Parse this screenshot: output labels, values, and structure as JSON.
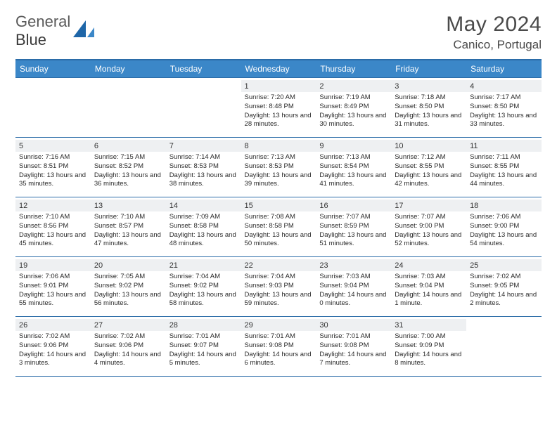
{
  "brand": {
    "part1": "General",
    "part2": "Blue"
  },
  "title": "May 2024",
  "location": "Canico, Portugal",
  "colors": {
    "header_bg": "#3b87c8",
    "header_border": "#2b6ca8",
    "daynum_bg": "#eef0f2",
    "text": "#2a2a2a",
    "title_text": "#4a4a4a"
  },
  "weekdays": [
    "Sunday",
    "Monday",
    "Tuesday",
    "Wednesday",
    "Thursday",
    "Friday",
    "Saturday"
  ],
  "weeks": [
    [
      {
        "n": "",
        "sr": "",
        "ss": "",
        "dl": ""
      },
      {
        "n": "",
        "sr": "",
        "ss": "",
        "dl": ""
      },
      {
        "n": "",
        "sr": "",
        "ss": "",
        "dl": ""
      },
      {
        "n": "1",
        "sr": "Sunrise: 7:20 AM",
        "ss": "Sunset: 8:48 PM",
        "dl": "Daylight: 13 hours and 28 minutes."
      },
      {
        "n": "2",
        "sr": "Sunrise: 7:19 AM",
        "ss": "Sunset: 8:49 PM",
        "dl": "Daylight: 13 hours and 30 minutes."
      },
      {
        "n": "3",
        "sr": "Sunrise: 7:18 AM",
        "ss": "Sunset: 8:50 PM",
        "dl": "Daylight: 13 hours and 31 minutes."
      },
      {
        "n": "4",
        "sr": "Sunrise: 7:17 AM",
        "ss": "Sunset: 8:50 PM",
        "dl": "Daylight: 13 hours and 33 minutes."
      }
    ],
    [
      {
        "n": "5",
        "sr": "Sunrise: 7:16 AM",
        "ss": "Sunset: 8:51 PM",
        "dl": "Daylight: 13 hours and 35 minutes."
      },
      {
        "n": "6",
        "sr": "Sunrise: 7:15 AM",
        "ss": "Sunset: 8:52 PM",
        "dl": "Daylight: 13 hours and 36 minutes."
      },
      {
        "n": "7",
        "sr": "Sunrise: 7:14 AM",
        "ss": "Sunset: 8:53 PM",
        "dl": "Daylight: 13 hours and 38 minutes."
      },
      {
        "n": "8",
        "sr": "Sunrise: 7:13 AM",
        "ss": "Sunset: 8:53 PM",
        "dl": "Daylight: 13 hours and 39 minutes."
      },
      {
        "n": "9",
        "sr": "Sunrise: 7:13 AM",
        "ss": "Sunset: 8:54 PM",
        "dl": "Daylight: 13 hours and 41 minutes."
      },
      {
        "n": "10",
        "sr": "Sunrise: 7:12 AM",
        "ss": "Sunset: 8:55 PM",
        "dl": "Daylight: 13 hours and 42 minutes."
      },
      {
        "n": "11",
        "sr": "Sunrise: 7:11 AM",
        "ss": "Sunset: 8:55 PM",
        "dl": "Daylight: 13 hours and 44 minutes."
      }
    ],
    [
      {
        "n": "12",
        "sr": "Sunrise: 7:10 AM",
        "ss": "Sunset: 8:56 PM",
        "dl": "Daylight: 13 hours and 45 minutes."
      },
      {
        "n": "13",
        "sr": "Sunrise: 7:10 AM",
        "ss": "Sunset: 8:57 PM",
        "dl": "Daylight: 13 hours and 47 minutes."
      },
      {
        "n": "14",
        "sr": "Sunrise: 7:09 AM",
        "ss": "Sunset: 8:58 PM",
        "dl": "Daylight: 13 hours and 48 minutes."
      },
      {
        "n": "15",
        "sr": "Sunrise: 7:08 AM",
        "ss": "Sunset: 8:58 PM",
        "dl": "Daylight: 13 hours and 50 minutes."
      },
      {
        "n": "16",
        "sr": "Sunrise: 7:07 AM",
        "ss": "Sunset: 8:59 PM",
        "dl": "Daylight: 13 hours and 51 minutes."
      },
      {
        "n": "17",
        "sr": "Sunrise: 7:07 AM",
        "ss": "Sunset: 9:00 PM",
        "dl": "Daylight: 13 hours and 52 minutes."
      },
      {
        "n": "18",
        "sr": "Sunrise: 7:06 AM",
        "ss": "Sunset: 9:00 PM",
        "dl": "Daylight: 13 hours and 54 minutes."
      }
    ],
    [
      {
        "n": "19",
        "sr": "Sunrise: 7:06 AM",
        "ss": "Sunset: 9:01 PM",
        "dl": "Daylight: 13 hours and 55 minutes."
      },
      {
        "n": "20",
        "sr": "Sunrise: 7:05 AM",
        "ss": "Sunset: 9:02 PM",
        "dl": "Daylight: 13 hours and 56 minutes."
      },
      {
        "n": "21",
        "sr": "Sunrise: 7:04 AM",
        "ss": "Sunset: 9:02 PM",
        "dl": "Daylight: 13 hours and 58 minutes."
      },
      {
        "n": "22",
        "sr": "Sunrise: 7:04 AM",
        "ss": "Sunset: 9:03 PM",
        "dl": "Daylight: 13 hours and 59 minutes."
      },
      {
        "n": "23",
        "sr": "Sunrise: 7:03 AM",
        "ss": "Sunset: 9:04 PM",
        "dl": "Daylight: 14 hours and 0 minutes."
      },
      {
        "n": "24",
        "sr": "Sunrise: 7:03 AM",
        "ss": "Sunset: 9:04 PM",
        "dl": "Daylight: 14 hours and 1 minute."
      },
      {
        "n": "25",
        "sr": "Sunrise: 7:02 AM",
        "ss": "Sunset: 9:05 PM",
        "dl": "Daylight: 14 hours and 2 minutes."
      }
    ],
    [
      {
        "n": "26",
        "sr": "Sunrise: 7:02 AM",
        "ss": "Sunset: 9:06 PM",
        "dl": "Daylight: 14 hours and 3 minutes."
      },
      {
        "n": "27",
        "sr": "Sunrise: 7:02 AM",
        "ss": "Sunset: 9:06 PM",
        "dl": "Daylight: 14 hours and 4 minutes."
      },
      {
        "n": "28",
        "sr": "Sunrise: 7:01 AM",
        "ss": "Sunset: 9:07 PM",
        "dl": "Daylight: 14 hours and 5 minutes."
      },
      {
        "n": "29",
        "sr": "Sunrise: 7:01 AM",
        "ss": "Sunset: 9:08 PM",
        "dl": "Daylight: 14 hours and 6 minutes."
      },
      {
        "n": "30",
        "sr": "Sunrise: 7:01 AM",
        "ss": "Sunset: 9:08 PM",
        "dl": "Daylight: 14 hours and 7 minutes."
      },
      {
        "n": "31",
        "sr": "Sunrise: 7:00 AM",
        "ss": "Sunset: 9:09 PM",
        "dl": "Daylight: 14 hours and 8 minutes."
      },
      {
        "n": "",
        "sr": "",
        "ss": "",
        "dl": ""
      }
    ]
  ]
}
